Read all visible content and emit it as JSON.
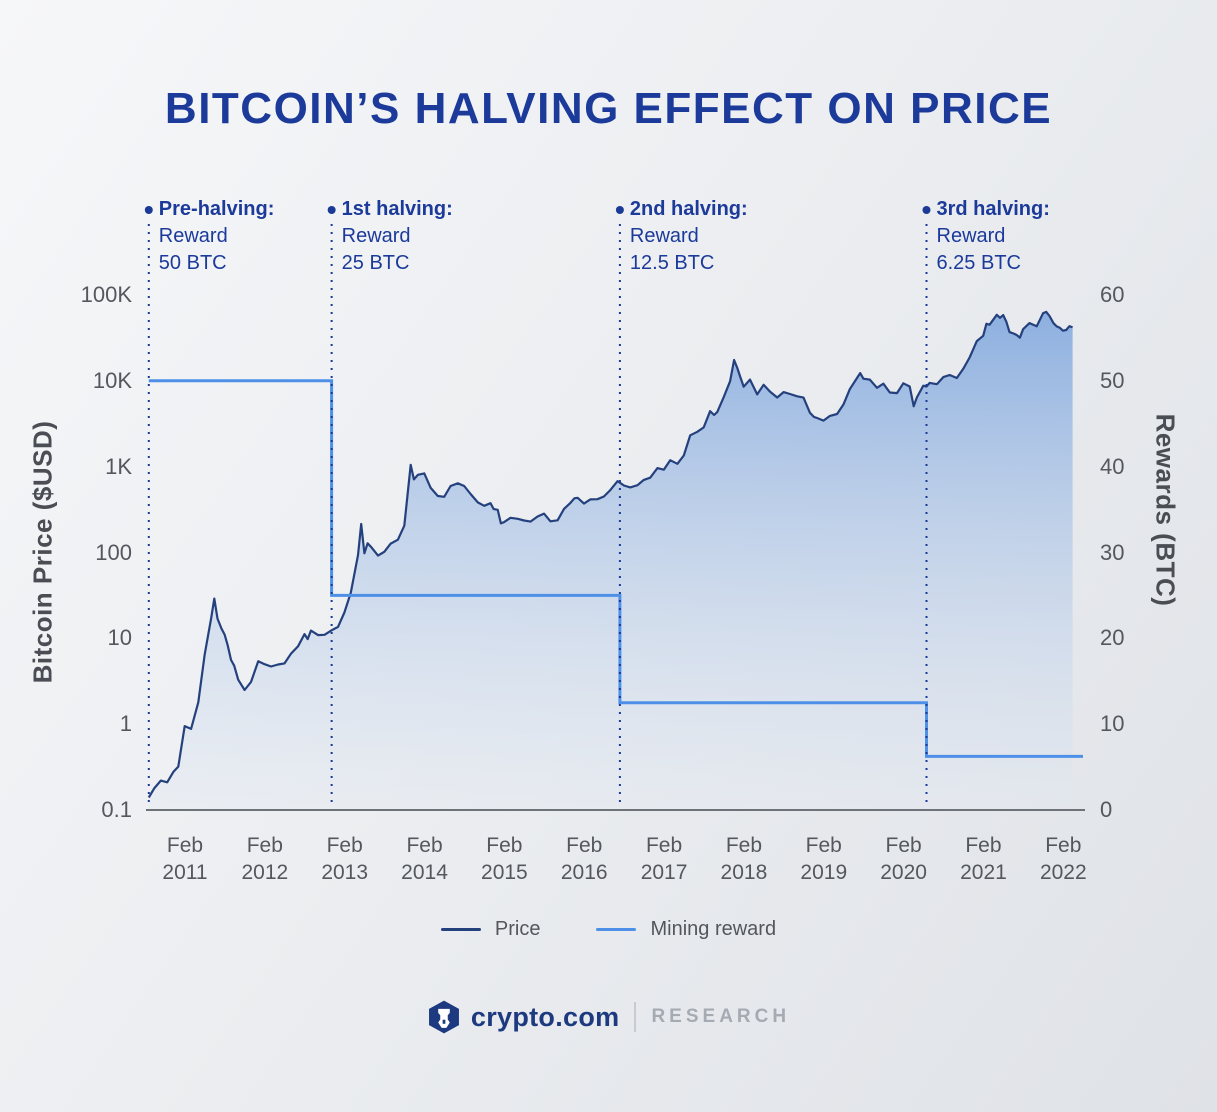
{
  "footer": {
    "brand": "crypto.com",
    "research": "RESEARCH"
  },
  "chart_data": {
    "type": "line",
    "title": "BITCOIN’S HALVING EFFECT ON PRICE",
    "ylabel_left": "Bitcoin Price ($USD)",
    "ylabel_right": "Rewards (BTC)",
    "y_left": {
      "scale": "log",
      "range": [
        0.1,
        100000
      ],
      "ticks": [
        {
          "label": "100K",
          "v": 100000
        },
        {
          "label": "10K",
          "v": 10000
        },
        {
          "label": "1K",
          "v": 1000
        },
        {
          "label": "100",
          "v": 100
        },
        {
          "label": "10",
          "v": 10
        },
        {
          "label": "1",
          "v": 1
        },
        {
          "label": "0.1",
          "v": 0.1
        }
      ]
    },
    "y_right": {
      "scale": "linear",
      "range": [
        0,
        60
      ],
      "ticks": [
        {
          "label": "60",
          "v": 60
        },
        {
          "label": "50",
          "v": 50
        },
        {
          "label": "40",
          "v": 40
        },
        {
          "label": "30",
          "v": 30
        },
        {
          "label": "20",
          "v": 20
        },
        {
          "label": "10",
          "v": 10
        },
        {
          "label": "0",
          "v": 0
        }
      ]
    },
    "x_ticks": [
      {
        "month": "Feb",
        "year": "2011"
      },
      {
        "month": "Feb",
        "year": "2012"
      },
      {
        "month": "Feb",
        "year": "2013"
      },
      {
        "month": "Feb",
        "year": "2014"
      },
      {
        "month": "Feb",
        "year": "2015"
      },
      {
        "month": "Feb",
        "year": "2016"
      },
      {
        "month": "Feb",
        "year": "2017"
      },
      {
        "month": "Feb",
        "year": "2018"
      },
      {
        "month": "Feb",
        "year": "2019"
      },
      {
        "month": "Feb",
        "year": "2020"
      },
      {
        "month": "Feb",
        "year": "2021"
      },
      {
        "month": "Feb",
        "year": "2022"
      }
    ],
    "halvings": [
      {
        "t": 2010.63,
        "title": "Pre-halving:",
        "line2": "Reward",
        "line3": "50 BTC"
      },
      {
        "t": 2012.92,
        "title": "1st halving:",
        "line2": "Reward",
        "line3": "25 BTC"
      },
      {
        "t": 2016.53,
        "title": "2nd halving:",
        "line2": "Reward",
        "line3": "12.5 BTC"
      },
      {
        "t": 2020.37,
        "title": "3rd halving:",
        "line2": "Reward",
        "line3": "6.25 BTC"
      }
    ],
    "series": [
      {
        "name": "Price",
        "color": "#25417d",
        "points": [
          [
            2010.63,
            0.14
          ],
          [
            2010.7,
            0.18
          ],
          [
            2010.78,
            0.22
          ],
          [
            2010.86,
            0.21
          ],
          [
            2010.94,
            0.28
          ],
          [
            2011.0,
            0.32
          ],
          [
            2011.08,
            0.95
          ],
          [
            2011.16,
            0.88
          ],
          [
            2011.25,
            1.8
          ],
          [
            2011.33,
            6.5
          ],
          [
            2011.41,
            17
          ],
          [
            2011.45,
            29
          ],
          [
            2011.49,
            17
          ],
          [
            2011.54,
            13
          ],
          [
            2011.58,
            11
          ],
          [
            2011.62,
            8.2
          ],
          [
            2011.66,
            5.6
          ],
          [
            2011.7,
            4.8
          ],
          [
            2011.75,
            3.3
          ],
          [
            2011.83,
            2.5
          ],
          [
            2011.91,
            3.1
          ],
          [
            2012.0,
            5.4
          ],
          [
            2012.08,
            5.0
          ],
          [
            2012.16,
            4.7
          ],
          [
            2012.25,
            4.95
          ],
          [
            2012.33,
            5.1
          ],
          [
            2012.41,
            6.6
          ],
          [
            2012.5,
            8.1
          ],
          [
            2012.58,
            11.2
          ],
          [
            2012.62,
            9.8
          ],
          [
            2012.66,
            12.3
          ],
          [
            2012.75,
            10.9
          ],
          [
            2012.83,
            11.0
          ],
          [
            2012.92,
            12.4
          ],
          [
            2013.0,
            13.6
          ],
          [
            2013.08,
            20
          ],
          [
            2013.16,
            34
          ],
          [
            2013.25,
            93
          ],
          [
            2013.29,
            215
          ],
          [
            2013.33,
            98
          ],
          [
            2013.37,
            128
          ],
          [
            2013.41,
            117
          ],
          [
            2013.5,
            92
          ],
          [
            2013.58,
            102
          ],
          [
            2013.66,
            127
          ],
          [
            2013.75,
            141
          ],
          [
            2013.83,
            205
          ],
          [
            2013.91,
            1050
          ],
          [
            2013.95,
            710
          ],
          [
            2014.0,
            805
          ],
          [
            2014.08,
            835
          ],
          [
            2014.16,
            565
          ],
          [
            2014.25,
            455
          ],
          [
            2014.33,
            445
          ],
          [
            2014.41,
            595
          ],
          [
            2014.5,
            640
          ],
          [
            2014.58,
            595
          ],
          [
            2014.66,
            480
          ],
          [
            2014.75,
            383
          ],
          [
            2014.83,
            350
          ],
          [
            2014.91,
            375
          ],
          [
            2014.95,
            320
          ],
          [
            2015.0,
            314
          ],
          [
            2015.04,
            218
          ],
          [
            2015.08,
            226
          ],
          [
            2015.16,
            254
          ],
          [
            2015.25,
            247
          ],
          [
            2015.33,
            236
          ],
          [
            2015.41,
            229
          ],
          [
            2015.5,
            263
          ],
          [
            2015.58,
            284
          ],
          [
            2015.66,
            231
          ],
          [
            2015.75,
            237
          ],
          [
            2015.83,
            322
          ],
          [
            2015.91,
            378
          ],
          [
            2015.96,
            428
          ],
          [
            2016.0,
            434
          ],
          [
            2016.08,
            371
          ],
          [
            2016.16,
            416
          ],
          [
            2016.25,
            418
          ],
          [
            2016.33,
            449
          ],
          [
            2016.41,
            533
          ],
          [
            2016.5,
            678
          ],
          [
            2016.53,
            650
          ],
          [
            2016.58,
            603
          ],
          [
            2016.66,
            574
          ],
          [
            2016.75,
            609
          ],
          [
            2016.83,
            702
          ],
          [
            2016.91,
            743
          ],
          [
            2017.0,
            963
          ],
          [
            2017.08,
            921
          ],
          [
            2017.16,
            1190
          ],
          [
            2017.25,
            1080
          ],
          [
            2017.33,
            1348
          ],
          [
            2017.41,
            2320
          ],
          [
            2017.5,
            2550
          ],
          [
            2017.58,
            2870
          ],
          [
            2017.66,
            4430
          ],
          [
            2017.71,
            4000
          ],
          [
            2017.75,
            4340
          ],
          [
            2017.83,
            6440
          ],
          [
            2017.91,
            9900
          ],
          [
            2017.96,
            17500
          ],
          [
            2018.0,
            14100
          ],
          [
            2018.04,
            10900
          ],
          [
            2018.08,
            8550
          ],
          [
            2018.16,
            10350
          ],
          [
            2018.25,
            6950
          ],
          [
            2018.33,
            9000
          ],
          [
            2018.41,
            7500
          ],
          [
            2018.5,
            6400
          ],
          [
            2018.58,
            7400
          ],
          [
            2018.66,
            7030
          ],
          [
            2018.75,
            6600
          ],
          [
            2018.83,
            6380
          ],
          [
            2018.91,
            4250
          ],
          [
            2018.96,
            3800
          ],
          [
            2019.0,
            3690
          ],
          [
            2019.08,
            3440
          ],
          [
            2019.16,
            3900
          ],
          [
            2019.25,
            4110
          ],
          [
            2019.33,
            5320
          ],
          [
            2019.41,
            7990
          ],
          [
            2019.5,
            10800
          ],
          [
            2019.54,
            12300
          ],
          [
            2019.58,
            10580
          ],
          [
            2019.66,
            10350
          ],
          [
            2019.75,
            8300
          ],
          [
            2019.83,
            9250
          ],
          [
            2019.91,
            7320
          ],
          [
            2020.0,
            7200
          ],
          [
            2020.08,
            9350
          ],
          [
            2020.16,
            8600
          ],
          [
            2020.21,
            5050
          ],
          [
            2020.25,
            6420
          ],
          [
            2020.33,
            8780
          ],
          [
            2020.37,
            8600
          ],
          [
            2020.41,
            9450
          ],
          [
            2020.5,
            9140
          ],
          [
            2020.58,
            11050
          ],
          [
            2020.66,
            11680
          ],
          [
            2020.75,
            10780
          ],
          [
            2020.83,
            13790
          ],
          [
            2020.91,
            18700
          ],
          [
            2020.96,
            23850
          ],
          [
            2021.0,
            29000
          ],
          [
            2021.08,
            33500
          ],
          [
            2021.12,
            46200
          ],
          [
            2021.16,
            45100
          ],
          [
            2021.25,
            58750
          ],
          [
            2021.29,
            54200
          ],
          [
            2021.33,
            58300
          ],
          [
            2021.37,
            49000
          ],
          [
            2021.41,
            37000
          ],
          [
            2021.46,
            35600
          ],
          [
            2021.5,
            34200
          ],
          [
            2021.54,
            31800
          ],
          [
            2021.58,
            39900
          ],
          [
            2021.66,
            47100
          ],
          [
            2021.75,
            43200
          ],
          [
            2021.83,
            61300
          ],
          [
            2021.87,
            63500
          ],
          [
            2021.91,
            57000
          ],
          [
            2021.96,
            46900
          ],
          [
            2022.0,
            43100
          ],
          [
            2022.04,
            41500
          ],
          [
            2022.08,
            38400
          ],
          [
            2022.12,
            39100
          ],
          [
            2022.16,
            43300
          ],
          [
            2022.2,
            41900
          ]
        ]
      },
      {
        "name": "Mining reward",
        "color": "#4e90e8",
        "steps": [
          {
            "from": 2010.63,
            "to": 2012.92,
            "value": 50
          },
          {
            "from": 2012.92,
            "to": 2016.53,
            "value": 25
          },
          {
            "from": 2016.53,
            "to": 2020.37,
            "value": 12.5
          },
          {
            "from": 2020.37,
            "to": 2022.33,
            "value": 6.25
          }
        ]
      }
    ]
  }
}
